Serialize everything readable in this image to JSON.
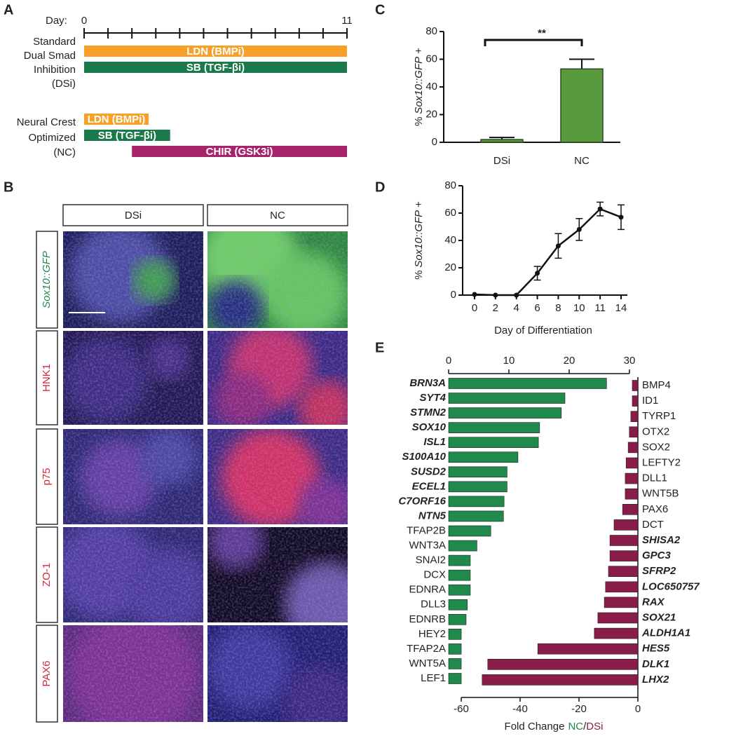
{
  "panel_b": {
    "label": "B",
    "columns": [
      "DSi",
      "NC"
    ],
    "rows": [
      "Sox10::GFP",
      "HNK1",
      "p75",
      "ZO-1",
      "PAX6"
    ]
  },
  "chart_data": [
    {
      "type": "timeline",
      "label": "A",
      "xlabel": "Day:",
      "xlim": [
        0,
        11
      ],
      "xticks": [
        0,
        11
      ],
      "minor_xticks": [
        1,
        2,
        3,
        4,
        5,
        6,
        7,
        8,
        9,
        10
      ],
      "groups": [
        {
          "label": [
            "Standard",
            "Dual Smad",
            "Inhibition",
            "(DSi)"
          ],
          "tasks": [
            {
              "label": "LDN (BMPi)",
              "start": 0,
              "end": 11,
              "color": "#f7a128"
            },
            {
              "label": "SB (TGF-βi)",
              "start": 0,
              "end": 11,
              "color": "#1b7a4b"
            }
          ]
        },
        {
          "label": [
            "Neural Crest",
            "Optimized",
            "(NC)"
          ],
          "tasks": [
            {
              "label": "LDN (BMPi)",
              "start": 0,
              "end": 2.7,
              "color": "#f7a128"
            },
            {
              "label": "SB (TGF-βi)",
              "start": 0,
              "end": 3.6,
              "color": "#1b7a4b"
            },
            {
              "label": "CHIR (GSK3i)",
              "start": 2,
              "end": 11,
              "color": "#a8246a"
            }
          ]
        }
      ]
    },
    {
      "type": "bar",
      "label": "C",
      "ylabel": [
        "%",
        "Sox10::GFP",
        "+"
      ],
      "categories": [
        "DSi",
        "NC"
      ],
      "values": [
        2,
        53
      ],
      "errors": [
        1.5,
        7
      ],
      "color": "#5a9a3e",
      "ylim": [
        0,
        80
      ],
      "yticks": [
        0,
        20,
        40,
        60,
        80
      ],
      "significance": "**"
    },
    {
      "type": "line",
      "label": "D",
      "ylabel": [
        "%",
        "Sox10::GFP",
        "+"
      ],
      "xlabel": "Day of Differentiation",
      "categories": [
        "0",
        "2",
        "4",
        "6",
        "8",
        "10",
        "11",
        "14"
      ],
      "values": [
        0.5,
        0,
        0,
        16,
        36,
        48,
        63,
        57
      ],
      "errors": [
        0,
        0,
        0,
        5,
        9,
        8,
        5,
        9
      ],
      "color": "#111111",
      "ylim": [
        0,
        80
      ],
      "yticks": [
        0,
        20,
        40,
        60,
        80
      ]
    },
    {
      "type": "diverging",
      "label": "E",
      "xlabel": "Fold Change",
      "legend_separator": "/",
      "x2lim": [
        0,
        30
      ],
      "x2ticks": [
        0,
        10,
        20,
        30
      ],
      "xlim": [
        -60,
        0
      ],
      "xticks": [
        -60,
        -40,
        -20,
        0
      ],
      "series": [
        {
          "name": "NC",
          "color": "#1f8a4c",
          "axis": "x2",
          "categories": [
            "BRN3A",
            "SYT4",
            "STMN2",
            "SOX10",
            "ISL1",
            "S100A10",
            "SUSD2",
            "ECEL1",
            "C7ORF16",
            "NTN5",
            "TFAP2B",
            "WNT3A",
            "SNAI2",
            "DCX",
            "EDNRA",
            "DLL3",
            "EDNRB",
            "HEY2",
            "TFAP2A",
            "WNT5A",
            "LEF1"
          ],
          "values": [
            26.2,
            19.3,
            18.7,
            15.1,
            14.9,
            11.5,
            9.7,
            9.7,
            9.2,
            9.1,
            7.0,
            4.7,
            3.6,
            3.6,
            3.6,
            3.1,
            2.9,
            2.1,
            2.1,
            2.1,
            2.1
          ],
          "bold_italic": [
            true,
            true,
            true,
            true,
            true,
            true,
            true,
            true,
            true,
            true,
            false,
            false,
            false,
            false,
            false,
            false,
            false,
            false,
            false,
            false,
            false
          ]
        },
        {
          "name": "DSi",
          "color": "#8a1c4a",
          "axis": "x",
          "categories": [
            "BMP4",
            "ID1",
            "TYRP1",
            "OTX2",
            "SOX2",
            "LEFTY2",
            "DLL1",
            "WNT5B",
            "PAX6",
            "DCT",
            "SHISA2",
            "GPC3",
            "SFRP2",
            "LOC650757",
            "RAX",
            "SOX21",
            "ALDH1A1",
            "HES5",
            "DLK1",
            "LHX2"
          ],
          "values": [
            -1.9,
            -1.9,
            -2.4,
            -2.9,
            -3.3,
            -4,
            -4.3,
            -4.3,
            -5.2,
            -8.1,
            -9.5,
            -9.5,
            -10,
            -11,
            -11.4,
            -13.6,
            -14.8,
            -34,
            -51,
            -52.9
          ],
          "bold_italic": [
            false,
            false,
            false,
            false,
            false,
            false,
            false,
            false,
            false,
            false,
            true,
            true,
            true,
            true,
            true,
            true,
            true,
            true,
            true,
            true
          ]
        }
      ]
    }
  ]
}
